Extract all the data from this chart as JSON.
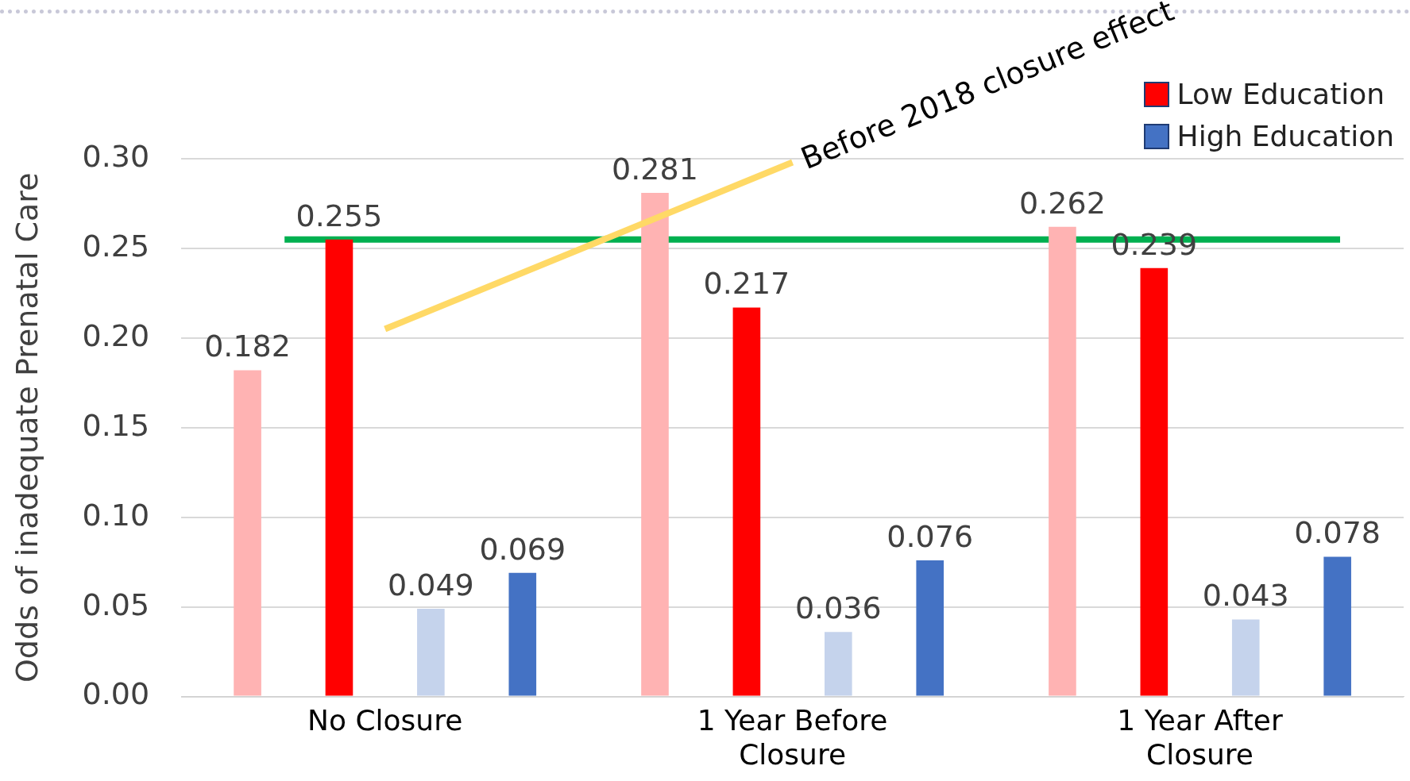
{
  "chart_data": {
    "type": "bar",
    "ylabel": "Odds of inadequate Prenatal Care",
    "categories": [
      "No Closure",
      "1 Year Before Closure",
      "1 Year After Closure"
    ],
    "series": [
      {
        "color": "#ffb3b3",
        "values": [
          0.182,
          0.281,
          0.262
        ]
      },
      {
        "name": "Low Education",
        "color": "#ff0000",
        "values": [
          0.255,
          0.217,
          0.239
        ]
      },
      {
        "color": "#c5d3ec",
        "values": [
          0.049,
          0.036,
          0.043
        ]
      },
      {
        "name": "High Education",
        "color": "#4472c4",
        "values": [
          0.069,
          0.076,
          0.078
        ]
      },
      {
        "type": "line",
        "color": "#ffd966",
        "values": [
          0.205,
          0.298,
          null
        ],
        "value_labels": [
          null,
          null,
          null
        ]
      }
    ],
    "ref_lines": [
      {
        "axis": "y",
        "value": 0.255,
        "color": "#00b050"
      }
    ],
    "ylim": [
      0,
      0.3
    ],
    "yticks": [
      {
        "value": 0,
        "label": "0.00"
      },
      0.05,
      {
        "value": 0.1,
        "label": "0.10"
      },
      0.15,
      {
        "value": 0.2,
        "label": "0.20"
      },
      0.25,
      {
        "value": 0.3,
        "label": "0.30"
      }
    ],
    "grid": "y",
    "legend": "top right",
    "data_labels": true,
    "annotations": [
      "Before 2018 closure effect"
    ]
  }
}
